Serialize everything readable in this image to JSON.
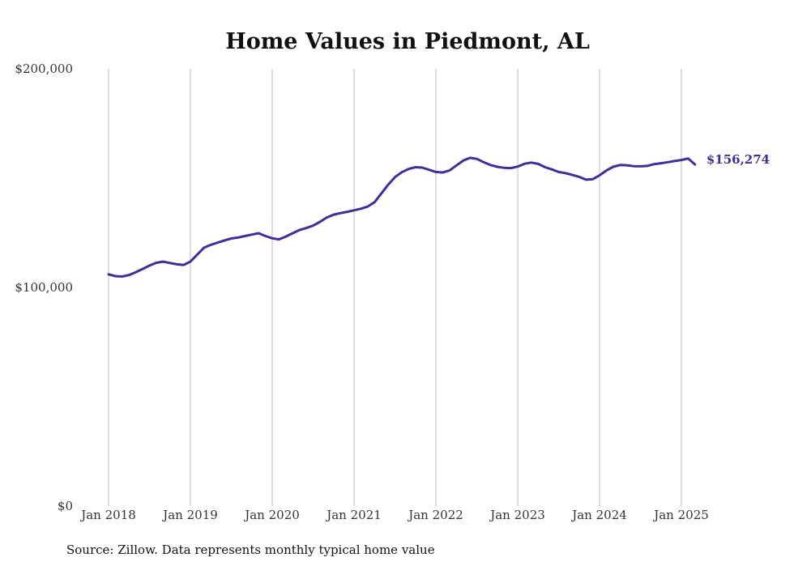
{
  "chart_data": {
    "type": "line",
    "title": "Home Values in Piedmont, AL",
    "xlabel": "",
    "ylabel": "",
    "ylim": [
      0,
      200000
    ],
    "y_ticks": [
      {
        "value": 0,
        "label": "$0"
      },
      {
        "value": 100000,
        "label": "$100,000"
      },
      {
        "value": 200000,
        "label": "$200,000"
      }
    ],
    "x_ticks": [
      "Jan 2018",
      "Jan 2019",
      "Jan 2020",
      "Jan 2021",
      "Jan 2022",
      "Jan 2023",
      "Jan 2024",
      "Jan 2025"
    ],
    "vertical_grid": true,
    "horizontal_grid": false,
    "line_color": "#3b3196",
    "end_label": "$156,274",
    "series": [
      {
        "x_start": "Jan 2018",
        "frequency": "monthly",
        "values": [
          106000,
          105200,
          105000,
          105700,
          107000,
          108500,
          110000,
          111300,
          111800,
          111200,
          110600,
          110300,
          111800,
          115000,
          118200,
          119500,
          120500,
          121500,
          122400,
          122800,
          123500,
          124200,
          124800,
          123500,
          122500,
          122000,
          123300,
          124800,
          126300,
          127200,
          128300,
          130000,
          132000,
          133300,
          134000,
          134600,
          135300,
          136000,
          137000,
          139000,
          143000,
          147000,
          150500,
          152700,
          154200,
          155000,
          154800,
          153800,
          152800,
          152600,
          153500,
          155800,
          158000,
          159300,
          158800,
          157300,
          156000,
          155200,
          154700,
          154600,
          155300,
          156600,
          157100,
          156500,
          155000,
          154000,
          152800,
          152300,
          151500,
          150600,
          149300,
          149500,
          151300,
          153500,
          155200,
          156000,
          155900,
          155500,
          155400,
          155600,
          156400,
          156800,
          157300,
          157800,
          158300,
          159000,
          156274
        ]
      }
    ]
  },
  "source_note": "Source: Zillow. Data represents monthly typical home value"
}
